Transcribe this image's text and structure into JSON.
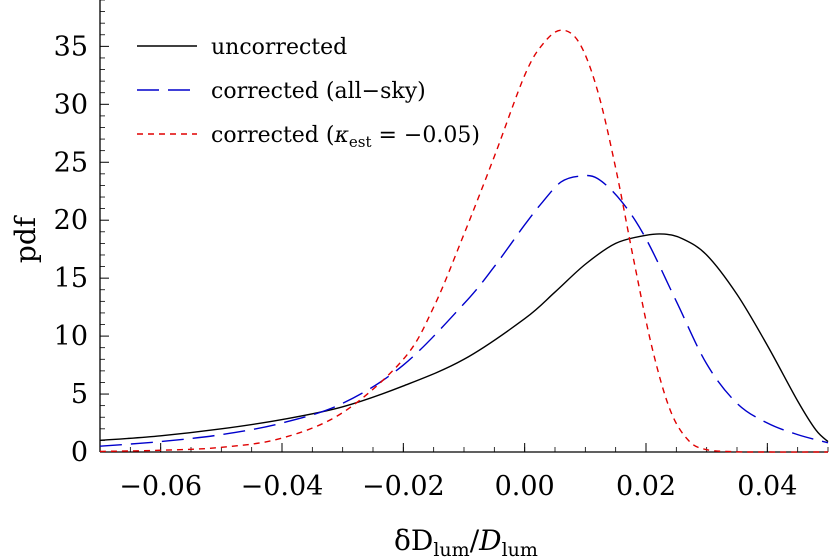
{
  "chart_data": {
    "type": "line",
    "title": "",
    "xlabel": {
      "prefix": "δD",
      "sub": "lum",
      "mid": "/",
      "italic": "D",
      "sub2": "lum"
    },
    "ylabel": "pdf",
    "xlim": [
      -0.07,
      0.05
    ],
    "ylim": [
      0,
      39
    ],
    "xticks": [
      -0.06,
      -0.04,
      -0.02,
      0.0,
      0.02,
      0.04
    ],
    "xtick_labels": [
      "−0.06",
      "−0.04",
      "−0.02",
      "0.00",
      "0.02",
      "0.04"
    ],
    "yticks": [
      0,
      5,
      10,
      15,
      20,
      25,
      30,
      35
    ],
    "ytick_labels": [
      "0",
      "5",
      "10",
      "15",
      "20",
      "25",
      "30",
      "35"
    ],
    "legend_position": "top-left",
    "series": [
      {
        "name": "uncorrected",
        "legend": {
          "text": "uncorrected"
        },
        "color": "#000000",
        "dash": "",
        "x": [
          -0.07,
          -0.06,
          -0.05,
          -0.04,
          -0.03,
          -0.02,
          -0.01,
          0.0,
          0.005,
          0.01,
          0.015,
          0.02,
          0.023,
          0.026,
          0.03,
          0.035,
          0.04,
          0.045,
          0.048,
          0.05
        ],
        "y": [
          1.0,
          1.4,
          2.0,
          2.8,
          3.9,
          5.7,
          8.0,
          11.5,
          13.8,
          16.2,
          18.0,
          18.7,
          18.8,
          18.4,
          17.0,
          13.6,
          9.2,
          4.4,
          1.9,
          0.9
        ]
      },
      {
        "name": "corrected (all-sky)",
        "legend": {
          "text": "corrected (all−sky)"
        },
        "color": "#0000cc",
        "dash": "22,9",
        "x": [
          -0.07,
          -0.06,
          -0.05,
          -0.04,
          -0.03,
          -0.02,
          -0.01,
          -0.005,
          0.0,
          0.003,
          0.006,
          0.009,
          0.012,
          0.016,
          0.02,
          0.025,
          0.03,
          0.035,
          0.04,
          0.045,
          0.05
        ],
        "y": [
          0.5,
          0.9,
          1.5,
          2.5,
          4.2,
          7.5,
          12.8,
          16.0,
          19.6,
          21.6,
          23.3,
          23.8,
          23.6,
          21.6,
          18.4,
          13.0,
          7.6,
          4.2,
          2.5,
          1.5,
          0.8
        ]
      },
      {
        "name": "corrected (kappa_est = -0.05)",
        "legend": {
          "prefix": "corrected (",
          "kappa": "κ",
          "sub": "est",
          "suffix": " = −0.05)"
        },
        "color": "#e00000",
        "dash": "6,5",
        "x": [
          -0.07,
          -0.06,
          -0.05,
          -0.04,
          -0.03,
          -0.02,
          -0.015,
          -0.01,
          -0.005,
          0.0,
          0.003,
          0.006,
          0.009,
          0.012,
          0.015,
          0.018,
          0.021,
          0.024,
          0.027,
          0.03,
          0.035,
          0.04,
          0.05
        ],
        "y": [
          0.05,
          0.15,
          0.4,
          1.2,
          3.4,
          8.0,
          12.5,
          18.8,
          25.5,
          32.5,
          35.2,
          36.4,
          35.3,
          31.2,
          24.5,
          16.5,
          9.0,
          3.6,
          1.0,
          0.2,
          0.02,
          0.0,
          0.0
        ]
      }
    ]
  }
}
